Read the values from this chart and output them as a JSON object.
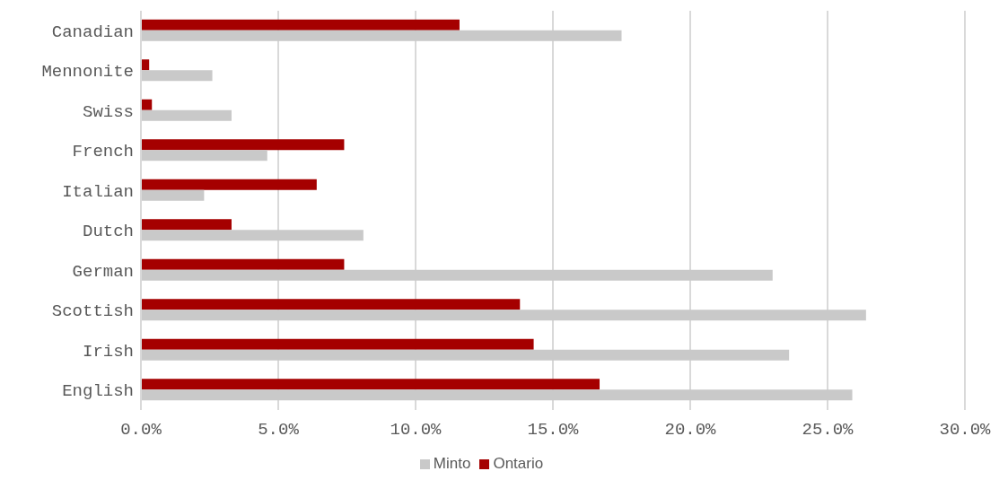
{
  "chart_data": {
    "type": "bar",
    "orientation": "horizontal",
    "categories": [
      "Canadian",
      "Mennonite",
      "Swiss",
      "French",
      "Italian",
      "Dutch",
      "German",
      "Scottish",
      "Irish",
      "English"
    ],
    "series": [
      {
        "name": "Ontario",
        "color": "#a50000",
        "values": [
          11.6,
          0.3,
          0.4,
          7.4,
          6.4,
          3.3,
          7.4,
          13.8,
          14.3,
          16.7
        ]
      },
      {
        "name": "Minto",
        "color": "#c9c9c9",
        "values": [
          17.5,
          2.6,
          3.3,
          4.6,
          2.3,
          8.1,
          23.0,
          26.4,
          23.6,
          25.9
        ]
      }
    ],
    "xlim": [
      0,
      30
    ],
    "xticks": [
      {
        "value": 0,
        "label": "0.0%"
      },
      {
        "value": 5,
        "label": "5.0%"
      },
      {
        "value": 10,
        "label": "10.0%"
      },
      {
        "value": 15,
        "label": "15.0%"
      },
      {
        "value": 20,
        "label": "20.0%"
      },
      {
        "value": 25,
        "label": "25.0%"
      },
      {
        "value": 30,
        "label": "30.0%"
      }
    ],
    "grid": "x",
    "legend": "bottom"
  }
}
